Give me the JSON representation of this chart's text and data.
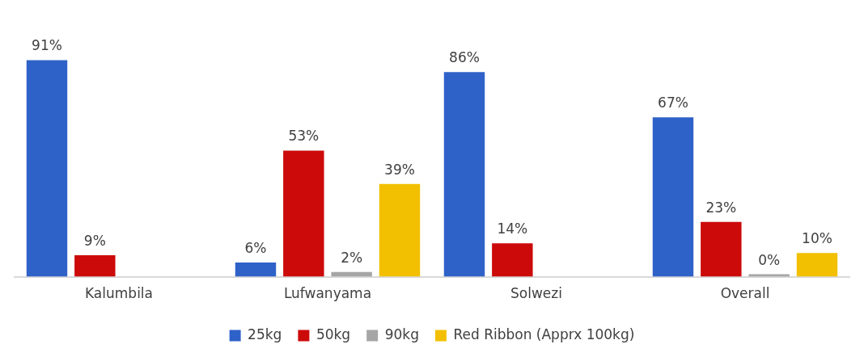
{
  "chart_data": {
    "type": "bar",
    "categories": [
      "Kalumbila",
      "Lufwanyama",
      "Solwezi",
      "Overall"
    ],
    "series": [
      {
        "name": "25kg",
        "color": "#2f62c8",
        "values": [
          91,
          6,
          86,
          67
        ],
        "value_labels": [
          "91%",
          "6%",
          "86%",
          "67%"
        ]
      },
      {
        "name": "50kg",
        "color": "#cc0a0a",
        "values": [
          9,
          53,
          14,
          23
        ],
        "value_labels": [
          "9%",
          "53%",
          "14%",
          "23%"
        ]
      },
      {
        "name": "90kg",
        "color": "#a6a6a6",
        "values": [
          null,
          2,
          null,
          0
        ],
        "value_labels": [
          null,
          "2%",
          null,
          "0%"
        ]
      },
      {
        "name": "Red Ribbon (Apprx 100kg)",
        "color": "#f2c000",
        "values": [
          null,
          39,
          null,
          10
        ],
        "value_labels": [
          null,
          "39%",
          null,
          "10%"
        ]
      }
    ],
    "legend": "bottom",
    "grid": false
  }
}
